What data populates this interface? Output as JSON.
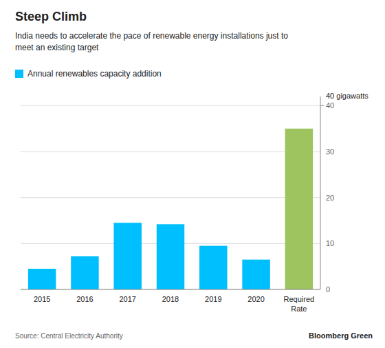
{
  "chart_data": {
    "type": "bar",
    "title": "Steep Climb",
    "subtitle": "India needs to accelerate the pace of renewable energy installations just to\nmeet an existing target",
    "categories": [
      "2015",
      "2016",
      "2017",
      "2018",
      "2019",
      "2020",
      "Required\nRate"
    ],
    "series": [
      {
        "name": "Annual renewables capacity addition",
        "color": "#00BFFF",
        "colors": [
          "#00BFFF",
          "#00BFFF",
          "#00BFFF",
          "#00BFFF",
          "#00BFFF",
          "#00BFFF",
          "#9DC45F"
        ],
        "values": [
          4.5,
          7.2,
          14.5,
          14.2,
          9.5,
          6.5,
          35.0
        ]
      }
    ],
    "ylim": [
      0,
      42
    ],
    "yticks": [
      0,
      10,
      20,
      30,
      40
    ],
    "grid": true,
    "legend": "top-left",
    "annotations": [
      {
        "text": "40 gigawatts",
        "y": 40
      }
    ],
    "source": "Source: Central Electricity Authority",
    "branding": "Bloomberg Green"
  }
}
